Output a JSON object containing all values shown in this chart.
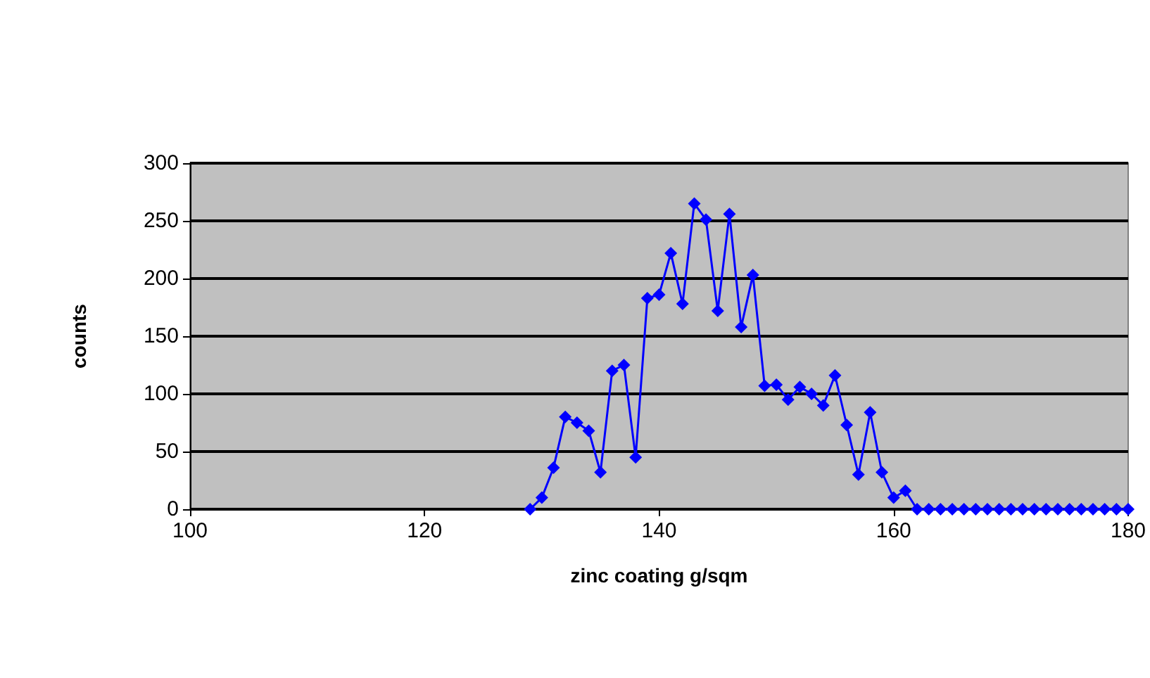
{
  "chart_data": {
    "type": "line",
    "xlabel": "zinc coating g/sqm",
    "ylabel": "counts",
    "x": [
      129,
      130,
      131,
      132,
      133,
      134,
      135,
      136,
      137,
      138,
      139,
      140,
      141,
      142,
      143,
      144,
      145,
      146,
      147,
      148,
      149,
      150,
      151,
      152,
      153,
      154,
      155,
      156,
      157,
      158,
      159,
      160,
      161,
      162,
      163,
      164,
      165,
      166,
      167,
      168,
      169,
      170,
      171,
      172,
      173,
      174,
      175,
      176,
      177,
      178,
      179,
      180
    ],
    "series": [
      {
        "color": "#0000ff",
        "values": [
          0,
          10,
          36,
          80,
          75,
          68,
          32,
          120,
          125,
          45,
          183,
          186,
          222,
          178,
          265,
          251,
          172,
          256,
          158,
          203,
          107,
          108,
          95,
          106,
          100,
          90,
          116,
          73,
          30,
          84,
          32,
          10,
          16,
          0,
          0,
          0,
          0,
          0,
          0,
          0,
          0,
          0,
          0,
          0,
          0,
          0,
          0,
          0,
          0,
          0,
          0,
          0
        ]
      }
    ],
    "xlim": [
      100,
      180
    ],
    "xticks": [
      100,
      120,
      140,
      160,
      180
    ],
    "ylim": [
      0,
      300
    ],
    "yticks": [
      0,
      50,
      100,
      150,
      200,
      250,
      300
    ],
    "grid": "y",
    "marker": "diamond",
    "line_style": "solid",
    "legend": false
  }
}
